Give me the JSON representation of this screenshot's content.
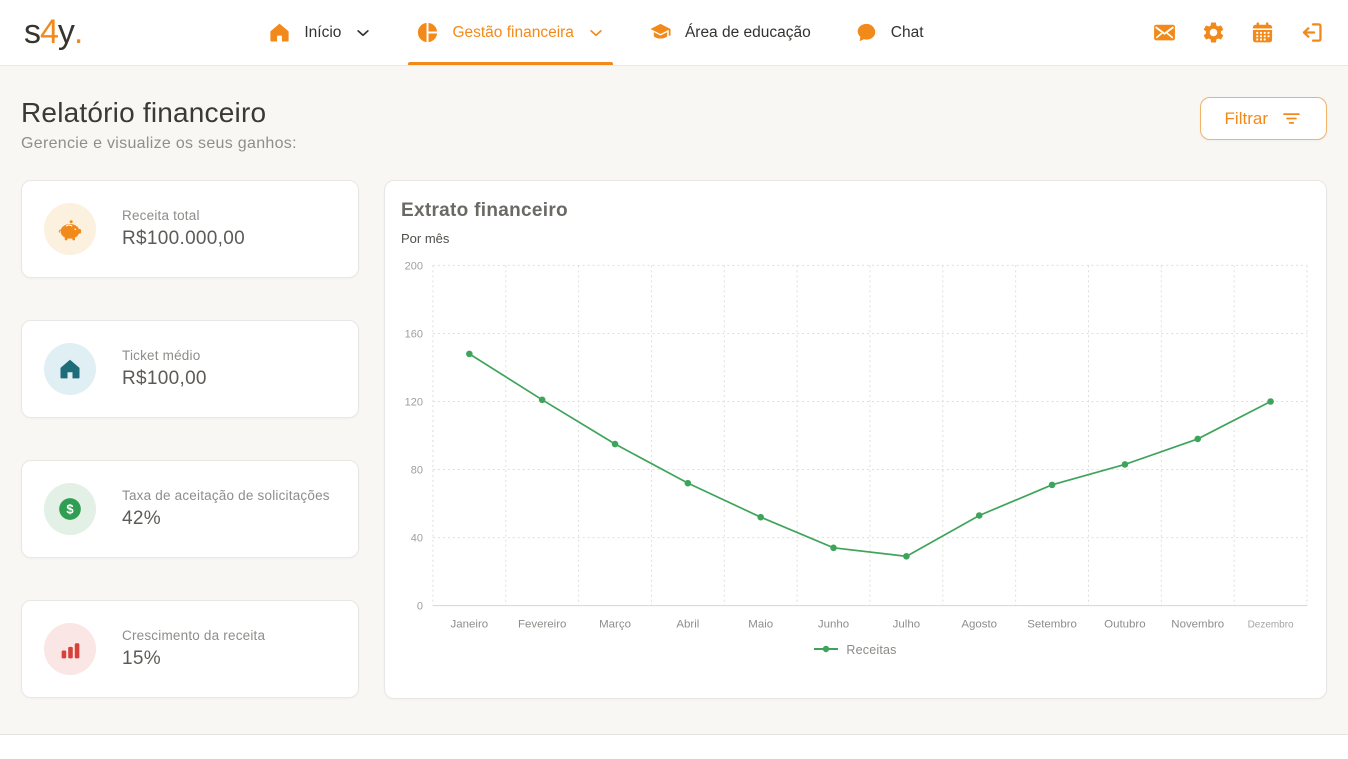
{
  "theme": {
    "accent": "#F28A1B",
    "page_bg": "#F8F7F4",
    "card_border": "#E9E7E3"
  },
  "brand": {
    "logo_s": "s",
    "logo_4": "4",
    "logo_y": "y",
    "logo_dot": "."
  },
  "nav": {
    "items": [
      {
        "label": "Início",
        "icon": "home-icon",
        "active": false,
        "chevron": true
      },
      {
        "label": "Gestão financeira",
        "icon": "pie-chart-icon",
        "active": true,
        "chevron": true
      },
      {
        "label": "Área de educação",
        "icon": "graduation-cap-icon",
        "active": false,
        "chevron": false
      },
      {
        "label": "Chat",
        "icon": "chat-bubble-icon",
        "active": false,
        "chevron": false
      }
    ],
    "action_icons": [
      "mail-icon",
      "settings-gear-icon",
      "calendar-icon",
      "logout-icon"
    ]
  },
  "header": {
    "title": "Relatório financeiro",
    "subtitle": "Gerencie e visualize os seus ganhos:",
    "filter_label": "Filtrar"
  },
  "stats": [
    {
      "label": "Receita total",
      "value": "R$100.000,00",
      "icon": "piggy-bank-icon",
      "color": "#F28A1B",
      "bg": "#FCF0DF"
    },
    {
      "label": "Ticket médio",
      "value": "R$100,00",
      "icon": "house-icon",
      "color": "#1E6B7A",
      "bg": "#DFEFF4"
    },
    {
      "label": "Taxa de aceitação de solicitações",
      "value": "42%",
      "icon": "dollar-circle-icon",
      "color": "#2F9E53",
      "bg": "#E2F0E6"
    },
    {
      "label": "Crescimento da receita",
      "value": "15%",
      "icon": "bar-chart-icon",
      "color": "#D8403A",
      "bg": "#FAE6E4"
    }
  ],
  "chart_card": {
    "title": "Extrato financeiro",
    "subtitle": "Por mês"
  },
  "chart_data": {
    "type": "line",
    "categories": [
      "Janeiro",
      "Fevereiro",
      "Março",
      "Abril",
      "Maio",
      "Junho",
      "Julho",
      "Agosto",
      "Setembro",
      "Outubro",
      "Novembro",
      "Dezembro"
    ],
    "series": [
      {
        "name": "Receitas",
        "color": "#3FA45B",
        "values": [
          148,
          121,
          95,
          72,
          52,
          34,
          29,
          53,
          71,
          83,
          98,
          120
        ]
      }
    ],
    "title": "Extrato financeiro",
    "xlabel": "",
    "ylabel": "",
    "ylim": [
      0,
      200
    ],
    "yticks": [
      0,
      40,
      80,
      120,
      160,
      200
    ],
    "grid": "dashed-both-axes",
    "legend_position": "bottom-center"
  }
}
